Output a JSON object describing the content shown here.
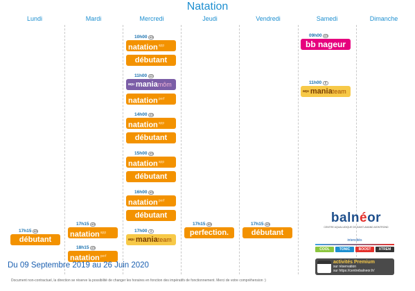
{
  "title": "Natation",
  "days": [
    "Lundi",
    "Mardi",
    "Mercredi",
    "Jeudi",
    "Vendredi",
    "Samedi",
    "Dimanche"
  ],
  "date_range": "Du 09 Septembre 2019 au 26 Juin 2020",
  "footer_note": "Document non-contractuel, la direction se réserve la possibilité de changer les horaires en fonction des impératifs de fonctionnement. Merci de votre compréhension :)",
  "labels": {
    "natation": "natation",
    "app": "app",
    "perf": "perf",
    "debutant": "débutant",
    "perfection": "perfection.",
    "mania": "mania",
    "mania_prefix": "aqu",
    "mom": "môm",
    "team": "team",
    "bb_nageur": "bb nageur",
    "age_tag": "AD",
    "kid_tag": "E"
  },
  "slots": {
    "mer_10": "10h00",
    "mer_11": "11h00",
    "mer_14": "14h00",
    "mer_15": "15h00",
    "mer_16": "16h00",
    "mer_17": "17h00",
    "lun_17": "17h15",
    "mar_17": "17h15",
    "mar_18": "18h15",
    "jeu_17": "17h15",
    "ven_17": "17h15",
    "sam_09": "09h00",
    "sam_11": "11h00"
  },
  "logo": {
    "name_part1": "baln",
    "name_part2": "é",
    "name_part3": "o",
    "name_part4": "r",
    "subtitle": "CENTRE AQUALUDIQUE DE SAINT-AMAND-MONTROND"
  },
  "intensity": {
    "label": "intensités",
    "levels": [
      "COOL",
      "TONIC",
      "BOOST",
      "XTREM"
    ],
    "colors": [
      "#8cc63f",
      "#1d8fd0",
      "#e4302b",
      "#333333"
    ]
  },
  "premium": {
    "title": "activités Premium",
    "line1": "sur réservation",
    "line2": "sur",
    "url": "https://centrebalneor.fr/"
  },
  "colors": {
    "accent": "#1d8fd0",
    "orange": "#f39200",
    "purple": "#7b5ea7",
    "yellow": "#f7c948",
    "pink": "#e6007e"
  }
}
